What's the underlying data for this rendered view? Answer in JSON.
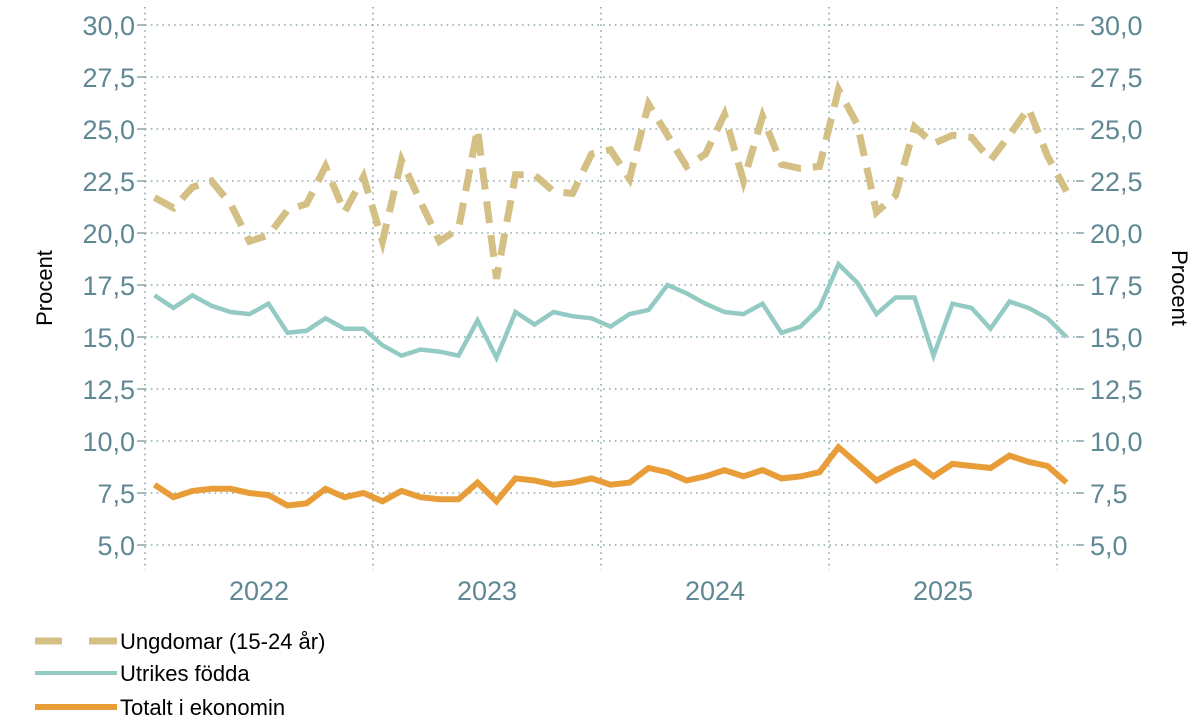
{
  "chart_data": {
    "type": "line",
    "title": "",
    "xlabel": "",
    "ylabel_left": "Procent",
    "ylabel_right": "Procent",
    "ylim": [
      5.0,
      30.0
    ],
    "yticks": [
      "5,0",
      "7,5",
      "10,0",
      "12,5",
      "15,0",
      "17,5",
      "20,0",
      "22,5",
      "25,0",
      "27,5",
      "30,0"
    ],
    "ytick_values": [
      5.0,
      7.5,
      10.0,
      12.5,
      15.0,
      17.5,
      20.0,
      22.5,
      25.0,
      27.5,
      30.0
    ],
    "x_tick_labels": [
      "2022",
      "2023",
      "2024",
      "2025"
    ],
    "x_start": "2022-01",
    "x_end": "2026-01",
    "frequency": "monthly",
    "grid": true,
    "legend_position": "bottom-left",
    "series": [
      {
        "name": "Ungdomar (15-24 år)",
        "style": "dashed",
        "color": "#d4bf84",
        "values": [
          21.7,
          21.2,
          22.2,
          22.5,
          21.4,
          19.6,
          19.9,
          21.1,
          21.4,
          23.2,
          21.0,
          22.7,
          19.6,
          23.5,
          21.5,
          19.6,
          20.2,
          25.0,
          17.8,
          22.8,
          22.8,
          22.0,
          21.9,
          23.8,
          24.0,
          22.6,
          26.2,
          24.7,
          23.2,
          23.8,
          25.7,
          22.5,
          25.6,
          23.3,
          23.1,
          23.2,
          26.9,
          25.2,
          21.0,
          21.8,
          25.1,
          24.3,
          24.7,
          24.6,
          23.5,
          24.7,
          26.0,
          23.7,
          22.0
        ]
      },
      {
        "name": "Utrikes födda",
        "style": "solid",
        "color": "#93cbc4",
        "values": [
          17.0,
          16.4,
          17.0,
          16.5,
          16.2,
          16.1,
          16.6,
          15.2,
          15.3,
          15.9,
          15.4,
          15.4,
          14.6,
          14.1,
          14.4,
          14.3,
          14.1,
          15.8,
          14.0,
          16.2,
          15.6,
          16.2,
          16.0,
          15.9,
          15.5,
          16.1,
          16.3,
          17.5,
          17.1,
          16.6,
          16.2,
          16.1,
          16.6,
          15.2,
          15.5,
          16.4,
          18.5,
          17.6,
          16.1,
          16.9,
          16.9,
          14.1,
          16.6,
          16.4,
          15.4,
          16.7,
          16.4,
          15.9,
          15.0
        ]
      },
      {
        "name": "Totalt i ekonomin",
        "style": "solid-thick",
        "color": "#e89d38",
        "values": [
          7.9,
          7.3,
          7.6,
          7.7,
          7.7,
          7.5,
          7.4,
          6.9,
          7.0,
          7.7,
          7.3,
          7.5,
          7.1,
          7.6,
          7.3,
          7.2,
          7.2,
          8.0,
          7.1,
          8.2,
          8.1,
          7.9,
          8.0,
          8.2,
          7.9,
          8.0,
          8.7,
          8.5,
          8.1,
          8.3,
          8.6,
          8.3,
          8.6,
          8.2,
          8.3,
          8.5,
          9.7,
          8.9,
          8.1,
          8.6,
          9.0,
          8.3,
          8.9,
          8.8,
          8.7,
          9.3,
          9.0,
          8.8,
          8.0
        ]
      }
    ]
  },
  "legend": {
    "items": [
      "Ungdomar (15-24 år)",
      "Utrikes födda",
      "Totalt i ekonomin"
    ]
  }
}
